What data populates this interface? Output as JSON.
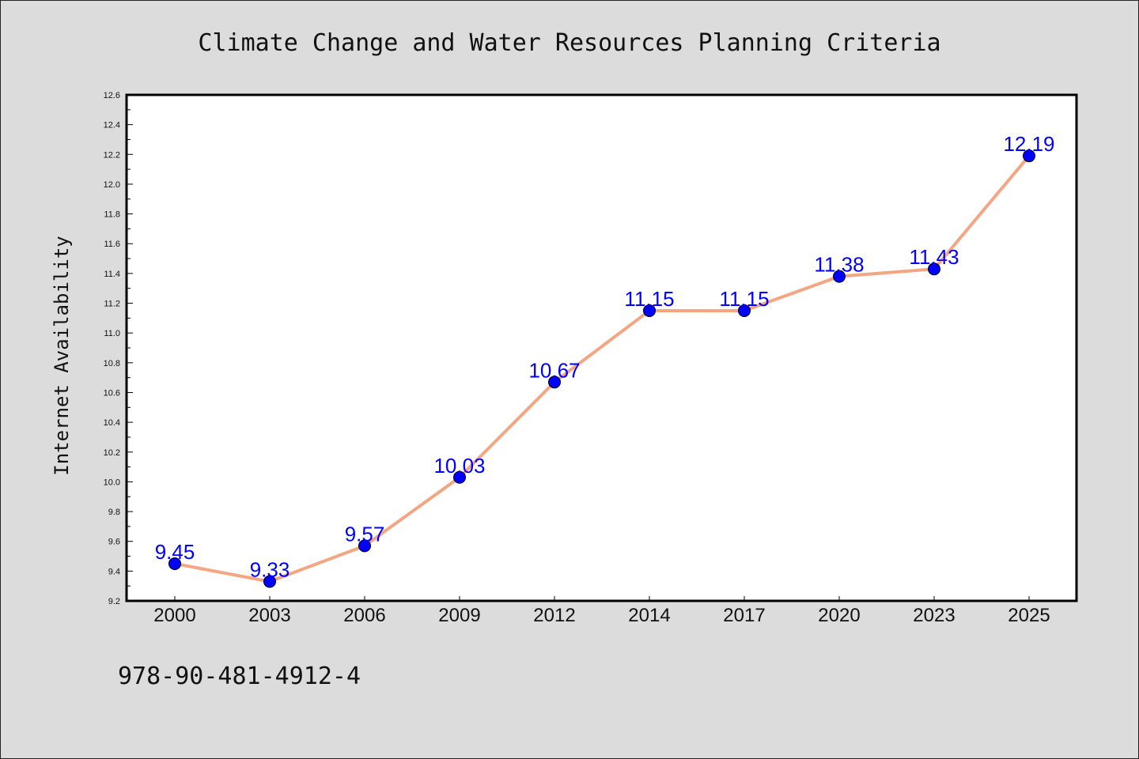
{
  "chart_data": {
    "type": "line",
    "title": "Climate Change and Water Resources Planning Criteria",
    "xlabel": "",
    "ylabel": "Internet Availability",
    "categories": [
      "2000",
      "2003",
      "2006",
      "2009",
      "2012",
      "2014",
      "2017",
      "2020",
      "2023",
      "2025"
    ],
    "series": [
      {
        "values": [
          9.45,
          9.33,
          9.57,
          10.03,
          10.67,
          11.15,
          11.15,
          11.38,
          11.43,
          12.19
        ]
      }
    ],
    "data_labels": [
      "9.45",
      "9.33",
      "9.57",
      "10.03",
      "10.67",
      "11.15",
      "11.15",
      "11.38",
      "11.43",
      "12.19"
    ],
    "ylim": [
      9.2,
      12.6
    ],
    "yticks": [
      "9.2",
      "9.4",
      "9.6",
      "9.8",
      "10.0",
      "10.2",
      "10.4",
      "10.6",
      "10.8",
      "11.0",
      "11.2",
      "11.4",
      "11.6",
      "11.8",
      "12.0",
      "12.2",
      "12.4",
      "12.6"
    ],
    "ytick_values": [
      9.2,
      9.4,
      9.6,
      9.8,
      10.0,
      10.2,
      10.4,
      10.6,
      10.8,
      11.0,
      11.2,
      11.4,
      11.6,
      11.8,
      12.0,
      12.2,
      12.4,
      12.6
    ],
    "grid": false,
    "annotation": "978-90-481-4912-4",
    "colors": {
      "figure_background": "#dcdcdc",
      "plot_background": "#ffffff",
      "line": "#f4a582",
      "marker": "#0000ff",
      "data_label": "#0000ff"
    }
  }
}
